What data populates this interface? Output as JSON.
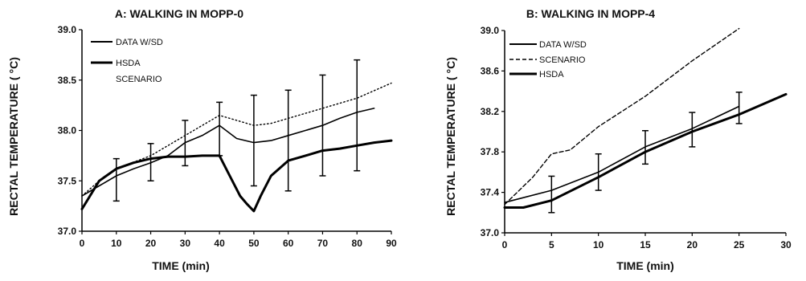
{
  "chart_data": [
    {
      "type": "line",
      "title": "A: WALKING IN MOPP-0",
      "xlabel": "TIME (min)",
      "ylabel": "RECTAL TEMPERATURE ( °C)",
      "xlim": [
        0,
        90
      ],
      "ylim": [
        37.0,
        39.0
      ],
      "xticks": [
        "0",
        "10",
        "20",
        "30",
        "40",
        "50",
        "60",
        "70",
        "80",
        "90"
      ],
      "yticks": [
        "37.0",
        "37.5",
        "38.0",
        "38.5",
        "39.0"
      ],
      "legend_location": "top-left",
      "legend": [
        "DATA W/SD",
        "HSDA",
        "SCENARIO"
      ],
      "grid": false,
      "series": [
        {
          "name": "DATA W/SD",
          "style": "thin-solid",
          "x": [
            0,
            5,
            10,
            15,
            20,
            25,
            30,
            35,
            40,
            45,
            50,
            55,
            60,
            65,
            70,
            75,
            80,
            85
          ],
          "y": [
            37.35,
            37.45,
            37.55,
            37.62,
            37.68,
            37.75,
            37.88,
            37.95,
            38.05,
            37.92,
            37.88,
            37.9,
            37.95,
            38.0,
            38.05,
            38.12,
            38.18,
            38.22
          ]
        },
        {
          "name": "HSDA",
          "style": "thick-solid",
          "x": [
            0,
            5,
            10,
            15,
            20,
            25,
            30,
            35,
            40,
            43,
            46,
            48,
            50,
            52,
            55,
            60,
            65,
            70,
            75,
            80,
            85,
            90
          ],
          "y": [
            37.22,
            37.5,
            37.62,
            37.68,
            37.72,
            37.74,
            37.74,
            37.75,
            37.75,
            37.55,
            37.35,
            37.27,
            37.2,
            37.35,
            37.55,
            37.7,
            37.75,
            37.8,
            37.82,
            37.85,
            37.88,
            37.9
          ]
        },
        {
          "name": "SCENARIO",
          "style": "dotted",
          "x": [
            0,
            5,
            10,
            20,
            30,
            35,
            40,
            45,
            50,
            55,
            60,
            70,
            80,
            90
          ],
          "y": [
            37.35,
            37.5,
            37.62,
            37.75,
            37.95,
            38.05,
            38.15,
            38.1,
            38.05,
            38.07,
            38.12,
            38.22,
            38.32,
            38.47
          ]
        }
      ],
      "error_bars": {
        "series": "DATA W/SD",
        "x": [
          10,
          20,
          30,
          40,
          50,
          60,
          70,
          80
        ],
        "low": [
          37.3,
          37.5,
          37.65,
          37.75,
          37.45,
          37.4,
          37.55,
          37.6
        ],
        "high": [
          37.72,
          37.87,
          38.1,
          38.28,
          38.35,
          38.4,
          38.55,
          38.7
        ]
      }
    },
    {
      "type": "line",
      "title": "B: WALKING IN MOPP-4",
      "xlabel": "TIME (min)",
      "ylabel": "RECTAL TEMPERATURE ( °C)",
      "xlim": [
        0,
        30
      ],
      "ylim": [
        37.0,
        39.0
      ],
      "xticks": [
        "0",
        "5",
        "10",
        "15",
        "20",
        "25",
        "30"
      ],
      "yticks": [
        "37.0",
        "37.4",
        "37.8",
        "38.2",
        "38.6",
        "39.0"
      ],
      "legend_location": "top-left",
      "legend": [
        "DATA W/SD",
        "SCENARIO",
        "HSDA"
      ],
      "grid": false,
      "series": [
        {
          "name": "DATA W/SD",
          "style": "thin-solid",
          "x": [
            0,
            5,
            10,
            15,
            20,
            25
          ],
          "y": [
            37.3,
            37.42,
            37.6,
            37.85,
            38.03,
            38.25
          ]
        },
        {
          "name": "SCENARIO",
          "style": "dashed",
          "x": [
            0,
            3,
            5,
            7,
            10,
            15,
            20,
            25
          ],
          "y": [
            37.28,
            37.55,
            37.78,
            37.82,
            38.05,
            38.35,
            38.7,
            39.02
          ]
        },
        {
          "name": "HSDA",
          "style": "thick-solid",
          "x": [
            0,
            2,
            5,
            10,
            15,
            20,
            25,
            30
          ],
          "y": [
            37.25,
            37.25,
            37.32,
            37.55,
            37.8,
            38.0,
            38.17,
            38.37
          ]
        }
      ],
      "error_bars": {
        "series": "DATA W/SD",
        "x": [
          5,
          10,
          15,
          20,
          25
        ],
        "low": [
          37.2,
          37.42,
          37.68,
          37.85,
          38.08
        ],
        "high": [
          37.56,
          37.78,
          38.01,
          38.19,
          38.39
        ]
      }
    }
  ]
}
